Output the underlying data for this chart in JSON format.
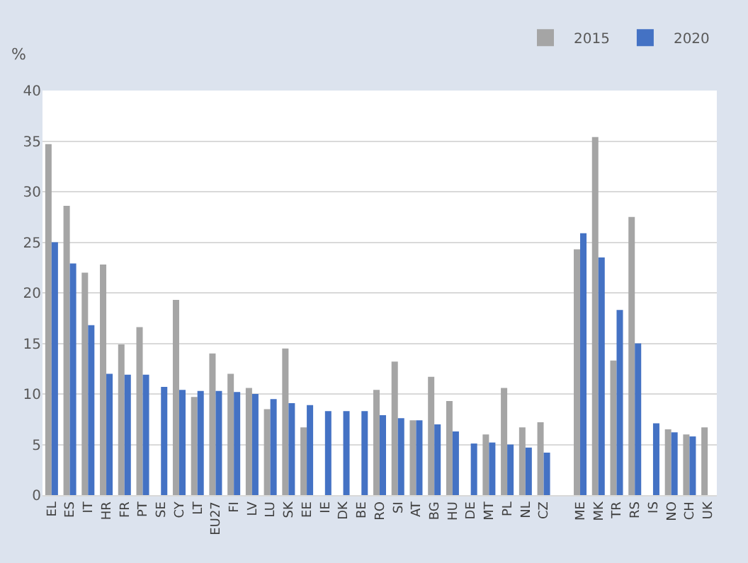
{
  "chart_data": {
    "type": "bar",
    "ylabel": "%",
    "categories": [
      "EL",
      "ES",
      "IT",
      "HR",
      "FR",
      "PT",
      "SE",
      "CY",
      "LT",
      "EU27",
      "FI",
      "LV",
      "LU",
      "SK",
      "EE",
      "IE",
      "DK",
      "BE",
      "RO",
      "SI",
      "AT",
      "BG",
      "HU",
      "DE",
      "MT",
      "PL",
      "NL",
      "CZ",
      null,
      "ME",
      "MK",
      "TR",
      "RS",
      "IS",
      "NO",
      "CH",
      "UK"
    ],
    "series": [
      {
        "name": "2015",
        "color": "#a5a5a5",
        "values": [
          34.7,
          28.6,
          22.0,
          22.8,
          14.9,
          16.6,
          null,
          19.3,
          9.7,
          14.0,
          12.0,
          10.6,
          8.5,
          14.5,
          6.7,
          null,
          null,
          null,
          10.4,
          13.2,
          7.4,
          11.7,
          9.3,
          null,
          6.0,
          10.6,
          6.7,
          7.2,
          null,
          24.3,
          35.4,
          13.3,
          27.5,
          null,
          6.5,
          6.0,
          6.7
        ]
      },
      {
        "name": "2020",
        "color": "#4472c4",
        "values": [
          25.0,
          22.9,
          16.8,
          12.0,
          11.9,
          11.9,
          10.7,
          10.4,
          10.3,
          10.3,
          10.2,
          10.0,
          9.5,
          9.1,
          8.9,
          8.3,
          8.3,
          8.3,
          7.9,
          7.6,
          7.4,
          7.0,
          6.3,
          5.1,
          5.2,
          5.0,
          4.7,
          4.2,
          null,
          25.9,
          23.5,
          18.3,
          15.0,
          7.1,
          6.2,
          5.8,
          null
        ]
      }
    ],
    "ylim": [
      0,
      40
    ],
    "yticks": [
      0,
      5,
      10,
      15,
      20,
      25,
      30,
      35,
      40
    ],
    "grid": "y",
    "legend": "top right"
  }
}
